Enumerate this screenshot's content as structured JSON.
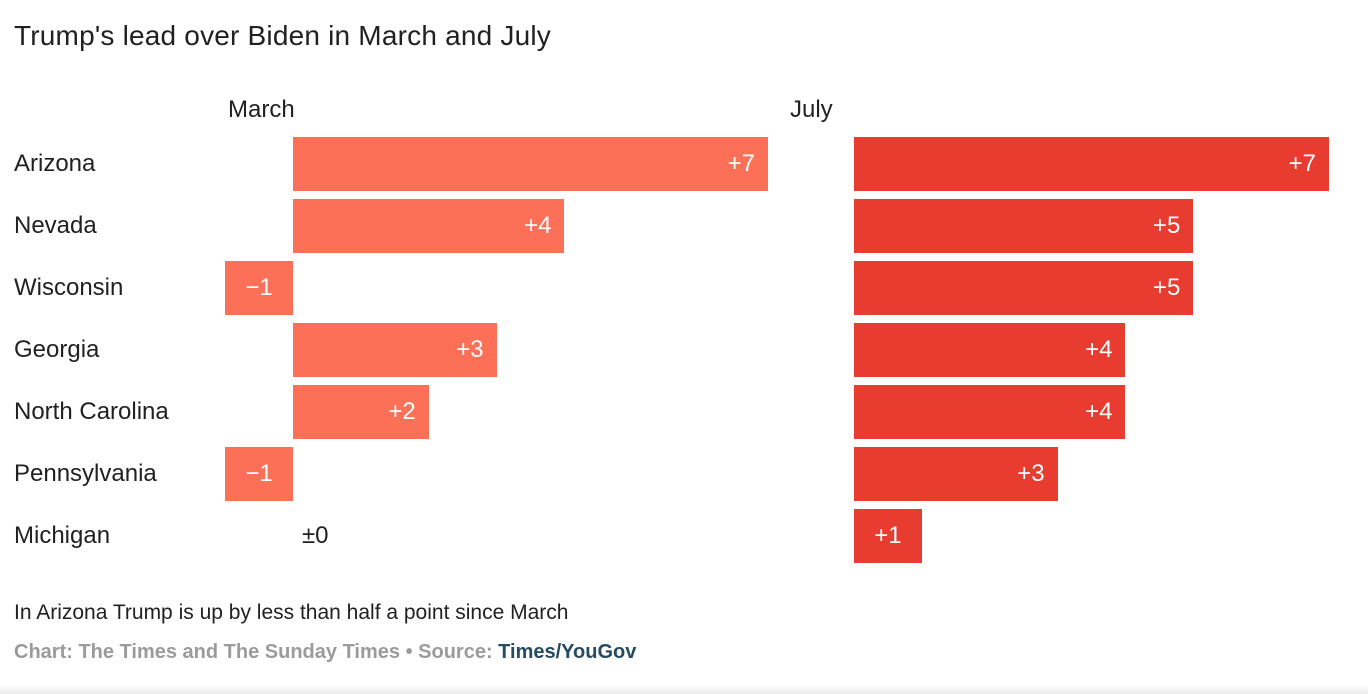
{
  "title": "Trump's lead over Biden in March and July",
  "chart_data": {
    "type": "bar",
    "orientation": "horizontal",
    "title": "Trump's lead over Biden in March and July",
    "categories": [
      "Arizona",
      "Nevada",
      "Wisconsin",
      "Georgia",
      "North Carolina",
      "Pennsylvania",
      "Michigan"
    ],
    "series": [
      {
        "name": "March",
        "color": "#fc7058",
        "values": [
          7,
          4,
          -1,
          3,
          2,
          -1,
          0
        ],
        "labels": [
          "+7",
          "+4",
          "−1",
          "+3",
          "+2",
          "−1",
          "±0"
        ]
      },
      {
        "name": "July",
        "color": "#e83c31",
        "values": [
          7,
          5,
          5,
          4,
          4,
          3,
          1
        ],
        "labels": [
          "+7",
          "+5",
          "+5",
          "+4",
          "+4",
          "+3",
          "+1"
        ]
      }
    ],
    "xlim": [
      -1,
      7
    ],
    "grid": false,
    "legend_position": "column-headers",
    "value_label_position": "inside-end"
  },
  "footer": {
    "note": "In Arizona Trump is up by less than half a point since March",
    "credit_chart": "Chart: The Times and The Sunday Times",
    "credit_separator": " • ",
    "credit_source_label": "Source: ",
    "credit_source_link": "Times/YouGov"
  },
  "colors": {
    "march_bar": "#fc7058",
    "july_bar": "#e83c31",
    "text": "#212121",
    "bar_value_text": "#ffffff",
    "credit_gray": "#9b9b9b",
    "link": "#254b62"
  }
}
